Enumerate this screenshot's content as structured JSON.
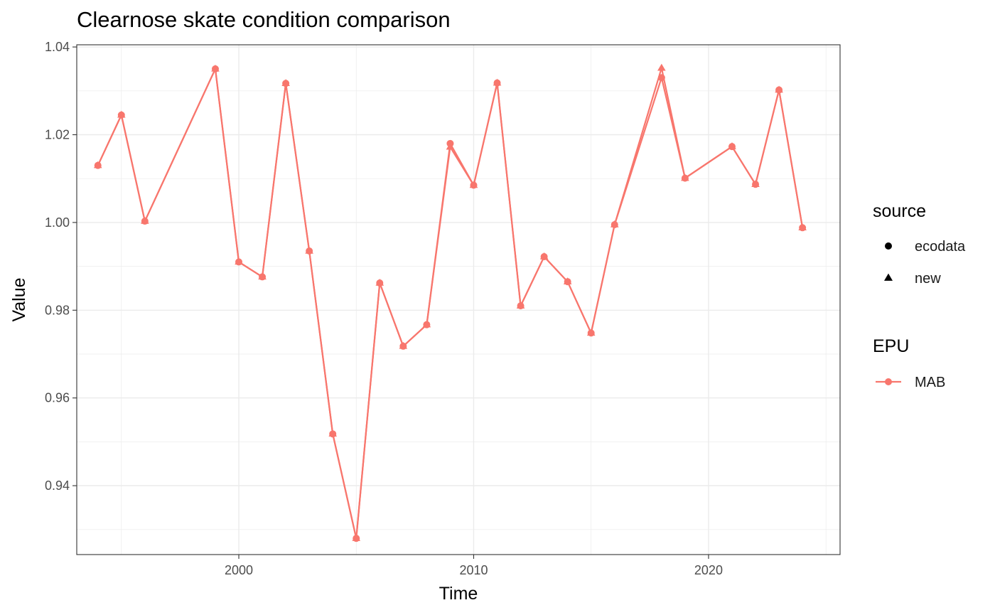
{
  "chart_data": {
    "type": "line",
    "title": "Clearnose skate condition comparison",
    "xlabel": "Time",
    "ylabel": "Value",
    "xlim": [
      1993.1,
      2025.6
    ],
    "ylim": [
      0.9243,
      1.0405
    ],
    "x_ticks": [
      2000,
      2010,
      2020
    ],
    "x_tick_labels": [
      "2000",
      "2010",
      "2020"
    ],
    "y_ticks": [
      0.94,
      0.96,
      0.98,
      1.0,
      1.02,
      1.04
    ],
    "y_tick_labels": [
      "0.94",
      "0.96",
      "0.98",
      "1.00",
      "1.02",
      "1.04"
    ],
    "grid": true,
    "legend_position": "right",
    "colors": {
      "MAB": "#F8766D",
      "marker_black": "#000000"
    },
    "legends": [
      {
        "title": "source",
        "entries": [
          {
            "label": "ecodata",
            "marker": "circle"
          },
          {
            "label": "new",
            "marker": "triangle"
          }
        ]
      },
      {
        "title": "EPU",
        "entries": [
          {
            "label": "MAB",
            "marker": "circle-line"
          }
        ]
      }
    ],
    "series": [
      {
        "source": "ecodata",
        "EPU": "MAB",
        "marker": "circle",
        "x": [
          1994,
          1995,
          1996,
          1999,
          2000,
          2001,
          2002,
          2003,
          2004,
          2005,
          2006,
          2007,
          2008,
          2009,
          2010,
          2011,
          2012,
          2013,
          2014,
          2015,
          2016,
          2018,
          2019,
          2021,
          2022,
          2023,
          2024
        ],
        "y": [
          1.013,
          1.0245,
          1.0003,
          1.035,
          0.991,
          0.9876,
          1.0317,
          0.9935,
          0.9518,
          0.928,
          0.9862,
          0.9718,
          0.9767,
          1.018,
          1.0085,
          1.0318,
          0.981,
          0.9922,
          0.9865,
          0.9748,
          0.9995,
          1.033,
          1.0101,
          1.0173,
          1.0087,
          1.0302,
          0.9988
        ]
      },
      {
        "source": "new",
        "EPU": "MAB",
        "marker": "triangle",
        "x": [
          1994,
          1995,
          1996,
          1999,
          2000,
          2001,
          2002,
          2003,
          2004,
          2005,
          2006,
          2007,
          2008,
          2009,
          2010,
          2011,
          2012,
          2013,
          2014,
          2015,
          2016,
          2018,
          2019,
          2021,
          2022,
          2023,
          2024
        ],
        "y": [
          1.013,
          1.0245,
          1.0003,
          1.035,
          0.991,
          0.9876,
          1.0317,
          0.9935,
          0.9518,
          0.928,
          0.9862,
          0.9718,
          0.9767,
          1.0172,
          1.0085,
          1.0318,
          0.981,
          0.9922,
          0.9865,
          0.9748,
          0.9995,
          1.0352,
          1.0101,
          1.0173,
          1.0087,
          1.0302,
          0.9988
        ]
      }
    ]
  }
}
